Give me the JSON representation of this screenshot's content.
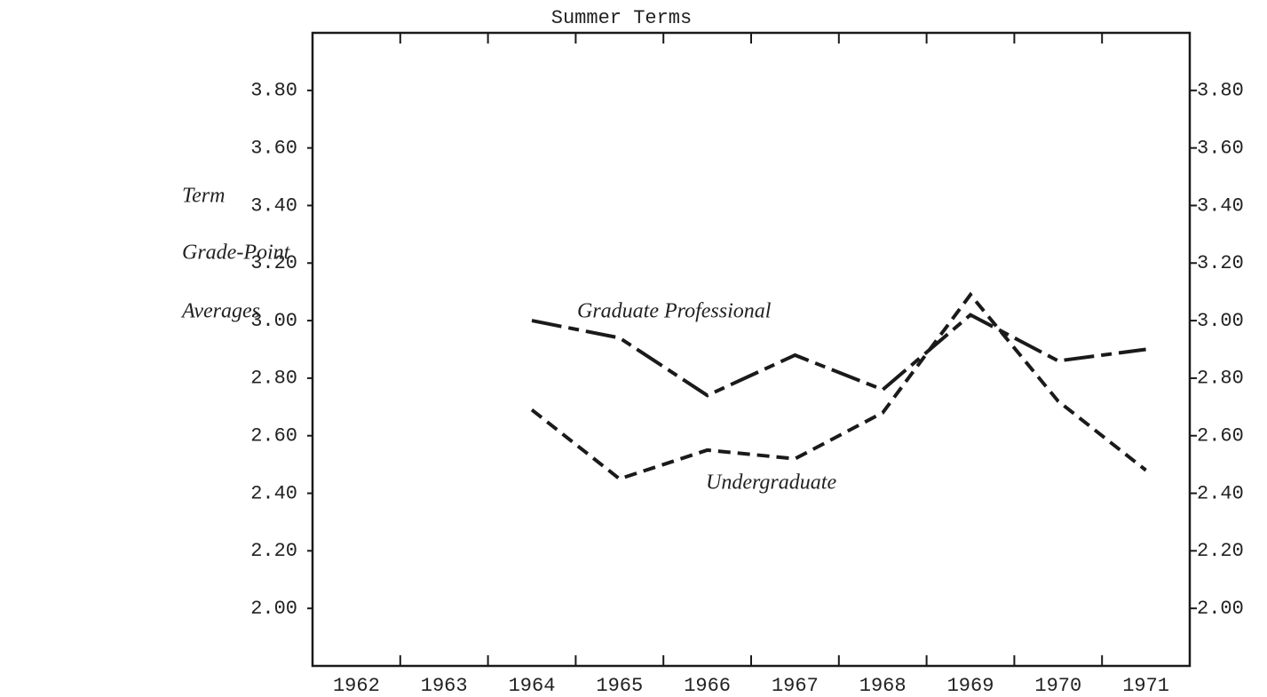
{
  "chart_data": {
    "type": "line",
    "title": "Summer Terms",
    "ylabel": [
      "Term",
      "Grade-Point",
      "Averages"
    ],
    "categories": [
      "1962",
      "1963",
      "1964",
      "1965",
      "1966",
      "1967",
      "1968",
      "1969",
      "1970",
      "1971"
    ],
    "series": [
      {
        "name": "Graduate Professional",
        "color": "#1a1a1a",
        "line_style": "long-dash",
        "values": [
          null,
          null,
          3.0,
          2.94,
          2.74,
          2.88,
          2.76,
          3.02,
          2.86,
          2.9
        ]
      },
      {
        "name": "Undergraduate",
        "color": "#1a1a1a",
        "line_style": "dashed",
        "values": [
          null,
          null,
          2.69,
          2.45,
          2.55,
          2.52,
          2.68,
          3.09,
          2.72,
          2.48
        ]
      }
    ],
    "ylim": [
      1.8,
      4.0
    ],
    "yticks": [
      {
        "value": 2.0,
        "label": "2.00"
      },
      {
        "value": 2.2,
        "label": "2.20"
      },
      {
        "value": 2.4,
        "label": "2.40"
      },
      {
        "value": 2.6,
        "label": "2.60"
      },
      {
        "value": 2.8,
        "label": "2.80"
      },
      {
        "value": 3.0,
        "label": "3.00"
      },
      {
        "value": 3.2,
        "label": "3.20"
      },
      {
        "value": 3.4,
        "label": "3.40"
      },
      {
        "value": 3.6,
        "label": "3.60"
      },
      {
        "value": 3.8,
        "label": "3.80"
      }
    ],
    "y2lim": [
      1.8,
      4.0
    ],
    "y2ticks": [
      {
        "value": 2.0,
        "label": "2.00"
      },
      {
        "value": 2.2,
        "label": "2.20"
      },
      {
        "value": 2.4,
        "label": "2.40"
      },
      {
        "value": 2.6,
        "label": "2.60"
      },
      {
        "value": 2.8,
        "label": "2.80"
      },
      {
        "value": 3.0,
        "label": "3.00"
      },
      {
        "value": 3.2,
        "label": "3.20"
      },
      {
        "value": 3.4,
        "label": "3.40"
      },
      {
        "value": 3.6,
        "label": "3.60"
      },
      {
        "value": 3.8,
        "label": "3.80"
      }
    ],
    "grid": false
  }
}
